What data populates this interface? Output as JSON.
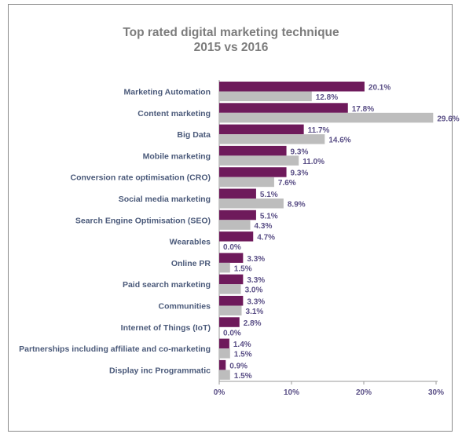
{
  "chart_data": {
    "type": "bar",
    "orientation": "horizontal",
    "title_line1": "Top rated digital marketing technique",
    "title_line2": "2015 vs 2016",
    "categories": [
      "Marketing Automation",
      "Content marketing",
      "Big Data",
      "Mobile marketing",
      "Conversion rate optimisation (CRO)",
      "Social media marketing",
      "Search Engine Optimisation (SEO)",
      "Wearables",
      "Online PR",
      "Paid search marketing",
      "Communities",
      "Internet of Things (IoT)",
      "Partnerships including affiliate and co-marketing",
      "Display inc Programmatic"
    ],
    "series": [
      {
        "values": [
          20.1,
          17.8,
          11.7,
          9.3,
          9.3,
          5.1,
          5.1,
          4.7,
          3.3,
          3.3,
          3.3,
          2.8,
          1.4,
          0.9
        ],
        "labels": [
          "20.1%",
          "17.8%",
          "11.7%",
          "9.3%",
          "9.3%",
          "5.1%",
          "5.1%",
          "4.7%",
          "3.3%",
          "3.3%",
          "3.3%",
          "2.8%",
          "1.4%",
          "0.9%"
        ],
        "color": "#6e1a5b"
      },
      {
        "values": [
          12.8,
          29.6,
          14.6,
          11.0,
          7.6,
          8.9,
          4.3,
          0.0,
          1.5,
          3.0,
          3.1,
          0.0,
          1.5,
          1.5
        ],
        "labels": [
          "12.8%",
          "29.6%",
          "14.6%",
          "11.0%",
          "7.6%",
          "8.9%",
          "4.3%",
          "0.0%",
          "1.5%",
          "3.0%",
          "3.1%",
          "0.0%",
          "1.5%",
          "1.5%"
        ],
        "color": "#bdbdbd"
      }
    ],
    "xlim": [
      0,
      30
    ],
    "xticks": [
      0,
      10,
      20,
      30
    ],
    "xtick_labels": [
      "0%",
      "10%",
      "20%",
      "30%"
    ],
    "xlabel": "",
    "ylabel": "",
    "grid": false,
    "legend": "none"
  }
}
